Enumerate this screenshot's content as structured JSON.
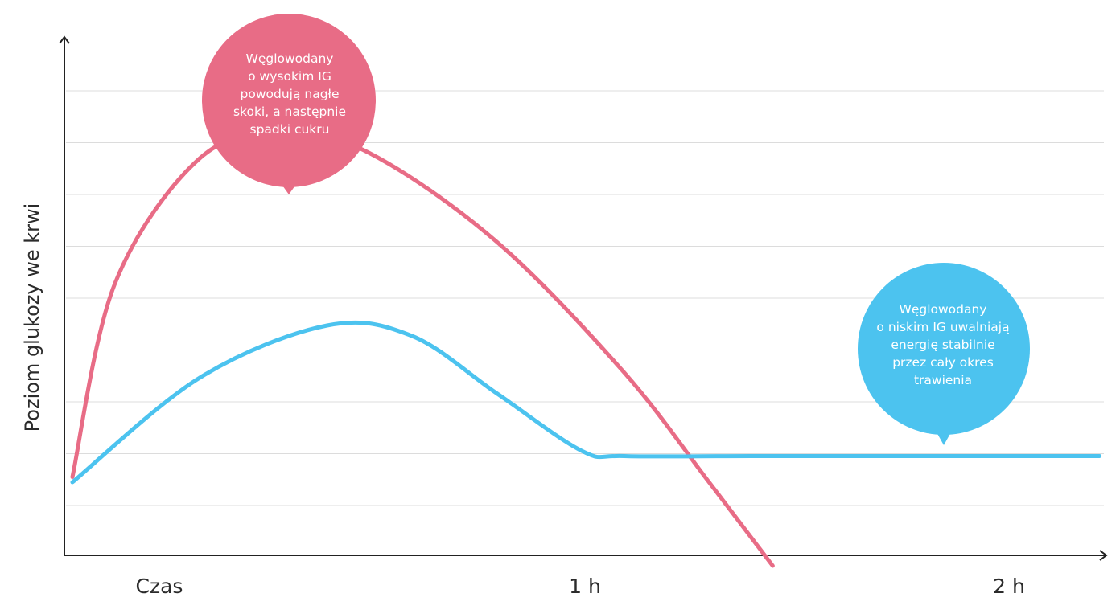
{
  "chart_data": {
    "type": "line",
    "ylabel": "Poziom glukozy we krwi",
    "x_ticks": [
      "Czas",
      "1 h",
      "2 h"
    ],
    "grid": true,
    "series": [
      {
        "color": "#e86c86",
        "points": [
          [
            0.0,
            0.15
          ],
          [
            0.1,
            0.52
          ],
          [
            0.3,
            0.76
          ],
          [
            0.5,
            0.81
          ],
          [
            0.7,
            0.77
          ],
          [
            1.0,
            0.6
          ],
          [
            1.3,
            0.35
          ],
          [
            1.5,
            0.14
          ],
          [
            1.65,
            -0.02
          ]
        ]
      },
      {
        "color": "#4cc3ef",
        "points": [
          [
            0.0,
            0.14
          ],
          [
            0.3,
            0.34
          ],
          [
            0.6,
            0.44
          ],
          [
            0.8,
            0.42
          ],
          [
            1.0,
            0.31
          ],
          [
            1.2,
            0.2
          ],
          [
            1.3,
            0.19
          ],
          [
            1.6,
            0.19
          ],
          [
            2.0,
            0.19
          ],
          [
            2.42,
            0.19
          ]
        ]
      }
    ],
    "annotations": [
      {
        "id": "high",
        "text": "Węglowodany\no wysokim IG\npowodują nagłe\nskoki, a następnie\nspadki cukru",
        "color": "#e86c86"
      },
      {
        "id": "low",
        "text": "Węglowodany\no niskim IG uwalniają\nenergię stabilnie\nprzez cały okres\ntrawienia",
        "color": "#4cc3ef"
      }
    ],
    "axis_color": "#222222",
    "grid_color": "#dcdcdc"
  }
}
